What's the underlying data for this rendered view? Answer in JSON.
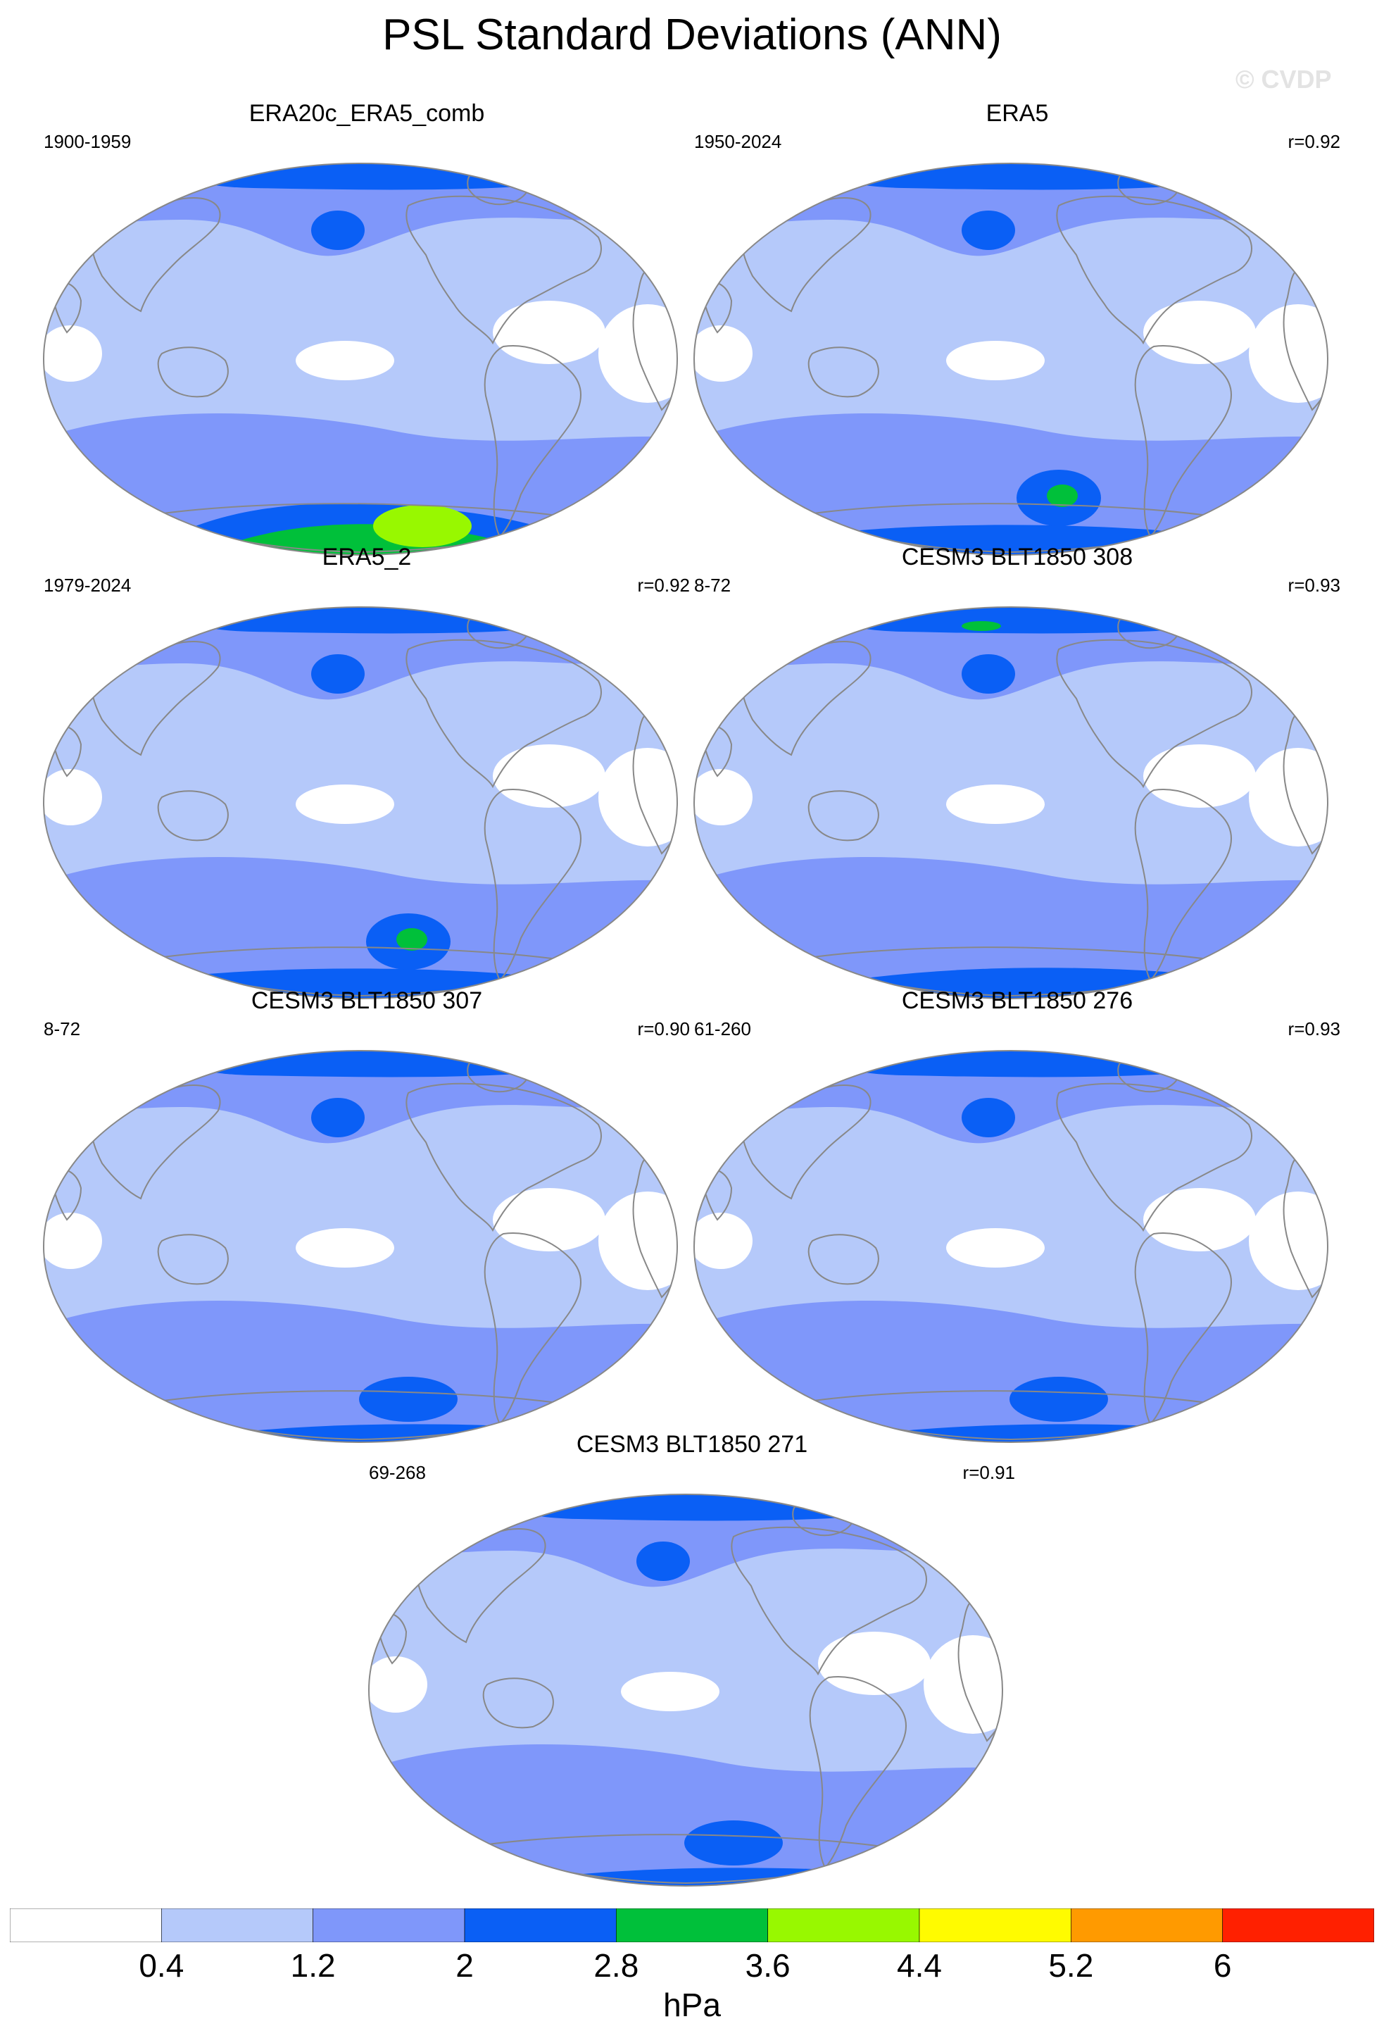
{
  "figure": {
    "title": "PSL Standard Deviations (ANN)",
    "watermark": "© CVDP"
  },
  "colors": {
    "levels": [
      "#ffffff",
      "#b5c9fa",
      "#7f97fa",
      "#0a5ff5",
      "#00c03a",
      "#98f800",
      "#fffb00",
      "#ff9a00",
      "#ff2000"
    ],
    "coast": "#888888",
    "ocean_border": "#888888"
  },
  "panels": [
    {
      "title": "ERA20c_ERA5_comb",
      "left": "1900-1959",
      "right": "",
      "variant": "era20c"
    },
    {
      "title": "ERA5",
      "left": "1950-2024",
      "right": "r=0.92",
      "variant": "era5"
    },
    {
      "title": "ERA5_2",
      "left": "1979-2024",
      "right": "r=0.92",
      "variant": "era5b"
    },
    {
      "title": "CESM3 BLT1850 308",
      "left": "8-72",
      "right": "r=0.93",
      "variant": "cesm308"
    },
    {
      "title": "CESM3 BLT1850 307",
      "left": "8-72",
      "right": "r=0.90",
      "variant": "cesm307"
    },
    {
      "title": "CESM3 BLT1850 276",
      "left": "61-260",
      "right": "r=0.93",
      "variant": "cesm276"
    },
    {
      "title": "CESM3 BLT1850 271",
      "left": "69-268",
      "right": "r=0.91",
      "variant": "cesm271"
    }
  ],
  "colorbar": {
    "labels": [
      "0.4",
      "1.2",
      "2",
      "2.8",
      "3.6",
      "4.4",
      "5.2",
      "6"
    ],
    "units": "hPa"
  }
}
